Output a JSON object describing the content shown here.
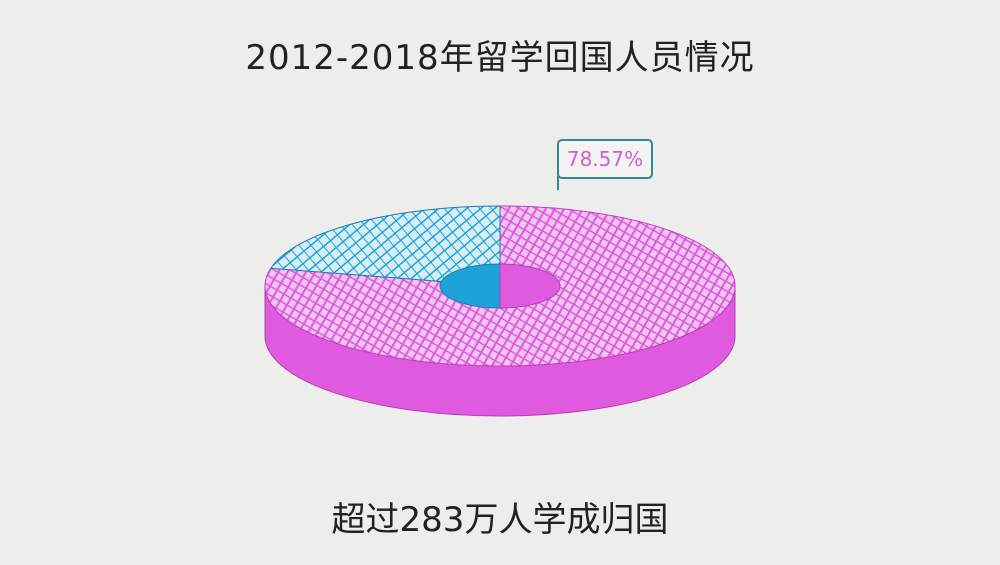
{
  "chart_data": {
    "type": "pie",
    "style": "3d-donut",
    "title": "2012-2018年留学回国人员情况",
    "subtitle": "超过283万人学成归国",
    "slices": [
      {
        "value": 78.57,
        "color": "#e05ae0",
        "label": "78.57%"
      },
      {
        "value": 21.43,
        "color": "#1ea3d8"
      }
    ]
  },
  "colors": {
    "background": "#ededeb",
    "callout_border": "#2a8a9a",
    "callout_text": "#d35fcf"
  }
}
